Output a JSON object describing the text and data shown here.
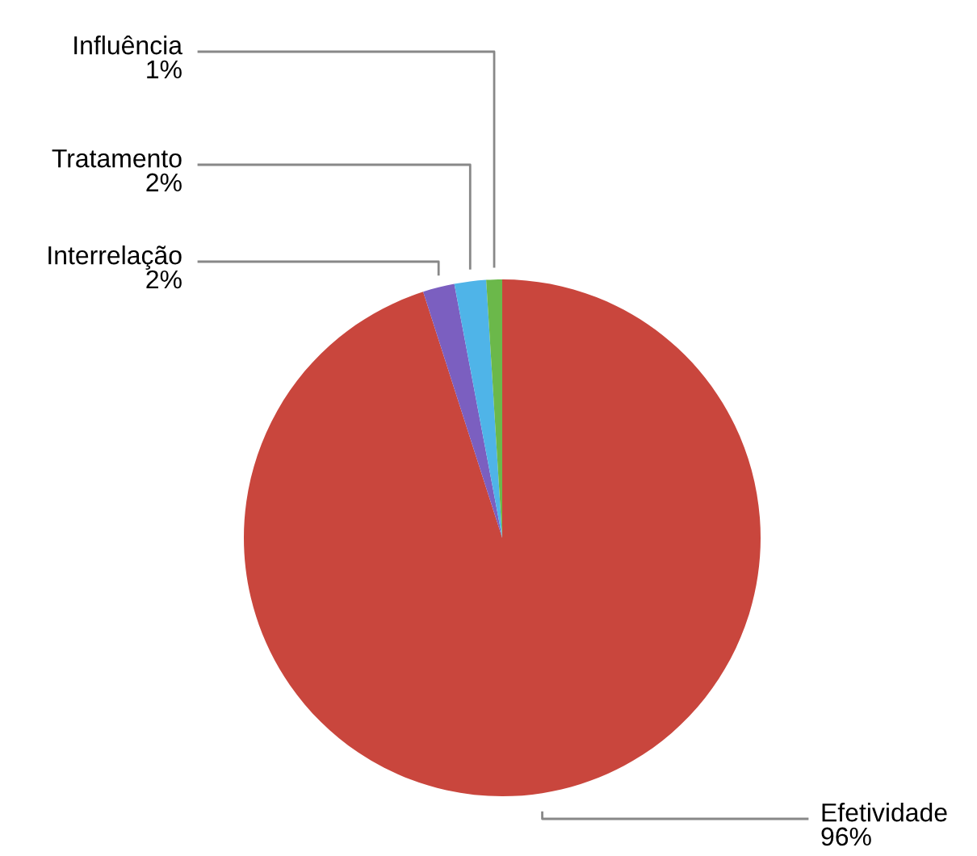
{
  "chart_data": {
    "type": "pie",
    "categories": [
      "Efetividade",
      "Interrelação",
      "Tratamento",
      "Influência"
    ],
    "values": [
      96,
      2,
      2,
      1
    ],
    "value_labels": [
      "96%",
      "2%",
      "2%",
      "1%"
    ],
    "colors": [
      "#c9463d",
      "#7b5fc0",
      "#4fb4e8",
      "#6bb84a"
    ],
    "legend": false
  }
}
